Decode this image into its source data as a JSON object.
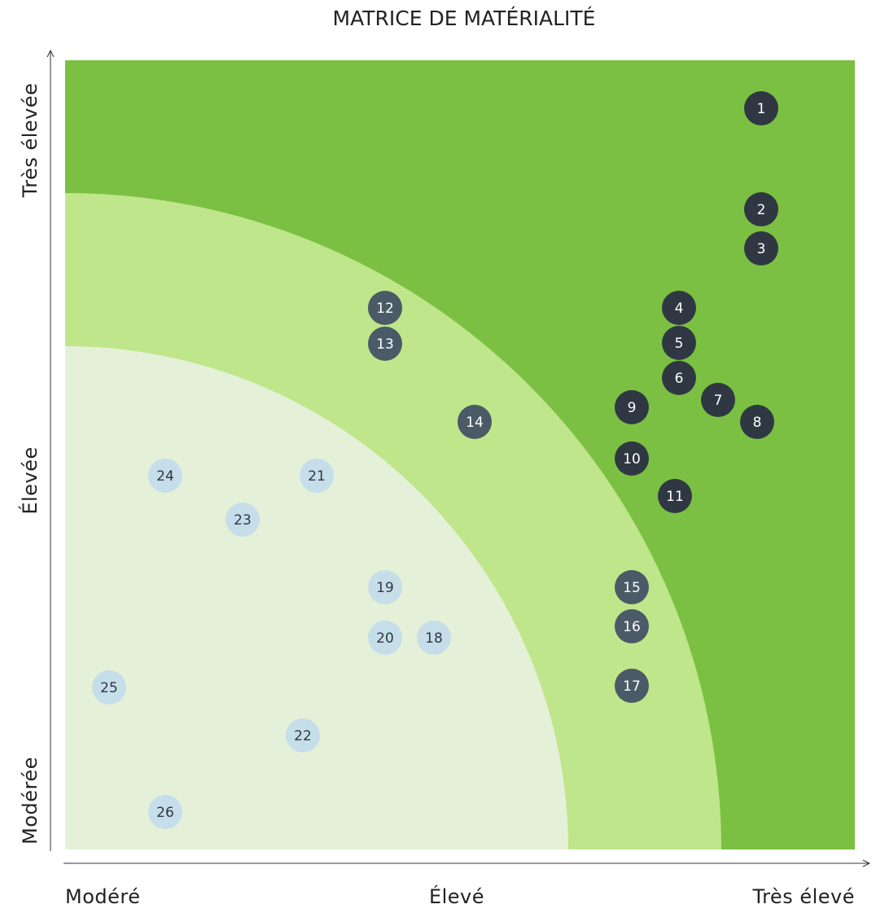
{
  "title": "MATRICE DE MATÉRIALITÉ",
  "y_axis_labels": [
    "Très élevée",
    "Élevée",
    "Modérée"
  ],
  "x_axis_labels": [
    "Modéré",
    "Élevé",
    "Très élevé"
  ],
  "nodes": [
    {
      "label": "1"
    },
    {
      "label": "2"
    },
    {
      "label": "3"
    },
    {
      "label": "4"
    },
    {
      "label": "5"
    },
    {
      "label": "6"
    },
    {
      "label": "7"
    },
    {
      "label": "8"
    },
    {
      "label": "9"
    },
    {
      "label": "10"
    },
    {
      "label": "11"
    },
    {
      "label": "12"
    },
    {
      "label": "13"
    },
    {
      "label": "14"
    },
    {
      "label": "15"
    },
    {
      "label": "16"
    },
    {
      "label": "17"
    },
    {
      "label": "18"
    },
    {
      "label": "19"
    },
    {
      "label": "20"
    },
    {
      "label": "21"
    },
    {
      "label": "22"
    },
    {
      "label": "23"
    },
    {
      "label": "24"
    },
    {
      "label": "25"
    },
    {
      "label": "26"
    }
  ]
}
